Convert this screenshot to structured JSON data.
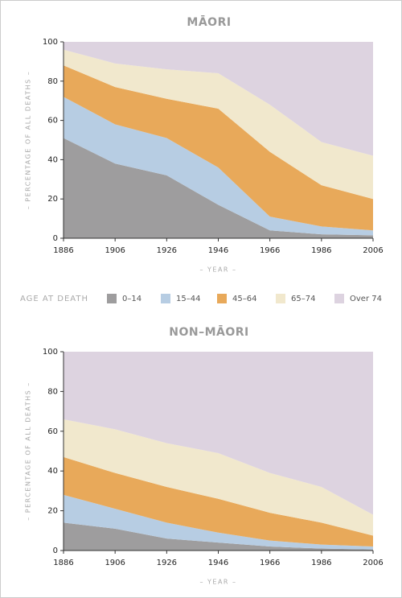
{
  "chart_data": [
    {
      "type": "area",
      "stacked": true,
      "title": "MĀORI",
      "y_label": "– PERCENTAGE OF ALL DEATHS –",
      "x_label": "– YEAR –",
      "legend_title": "AGE AT DEATH",
      "x": [
        1886,
        1906,
        1926,
        1946,
        1966,
        1986,
        2006
      ],
      "xlim": [
        1886,
        2006
      ],
      "xticks": [
        1886,
        1906,
        1926,
        1946,
        1966,
        1986,
        2006
      ],
      "ylim": [
        0,
        100
      ],
      "yticks": [
        0,
        20,
        40,
        60,
        80,
        100
      ],
      "series": [
        {
          "name": "0–14",
          "color": "#9e9d9e",
          "values": [
            51,
            38,
            32,
            17,
            4,
            2,
            1.5
          ]
        },
        {
          "name": "15–44",
          "color": "#b7cde3",
          "values": [
            21,
            20,
            19,
            19,
            7,
            4,
            2.5
          ]
        },
        {
          "name": "45–64",
          "color": "#e8a95a",
          "values": [
            16,
            19,
            20,
            30,
            33,
            21,
            16
          ]
        },
        {
          "name": "65–74",
          "color": "#f1e8cd",
          "values": [
            8,
            12,
            15,
            18,
            24,
            22,
            22
          ]
        },
        {
          "name": "Over 74",
          "color": "#ddd3e0",
          "values": [
            4,
            11,
            14,
            16,
            32,
            51,
            58
          ]
        }
      ]
    },
    {
      "type": "area",
      "stacked": true,
      "title": "NON–MĀORI",
      "y_label": "– PERCENTAGE OF ALL DEATHS –",
      "x_label": "– YEAR –",
      "x": [
        1886,
        1906,
        1926,
        1946,
        1966,
        1986,
        2006
      ],
      "xlim": [
        1886,
        2006
      ],
      "xticks": [
        1886,
        1906,
        1926,
        1946,
        1966,
        1986,
        2006
      ],
      "ylim": [
        0,
        100
      ],
      "yticks": [
        0,
        20,
        40,
        60,
        80,
        100
      ],
      "series": [
        {
          "name": "0–14",
          "color": "#9e9d9e",
          "values": [
            14,
            11,
            6,
            4,
            2,
            1,
            0.5
          ]
        },
        {
          "name": "15–44",
          "color": "#b7cde3",
          "values": [
            14,
            10,
            8,
            5,
            3,
            2,
            1.5
          ]
        },
        {
          "name": "45–64",
          "color": "#e8a95a",
          "values": [
            19,
            18,
            18,
            17,
            14,
            11,
            5.5
          ]
        },
        {
          "name": "65–74",
          "color": "#f1e8cd",
          "values": [
            19,
            22,
            22,
            23,
            20,
            18,
            10.5
          ]
        },
        {
          "name": "Over 74",
          "color": "#ddd3e0",
          "values": [
            34,
            39,
            46,
            51,
            61,
            68,
            82
          ]
        }
      ]
    }
  ]
}
